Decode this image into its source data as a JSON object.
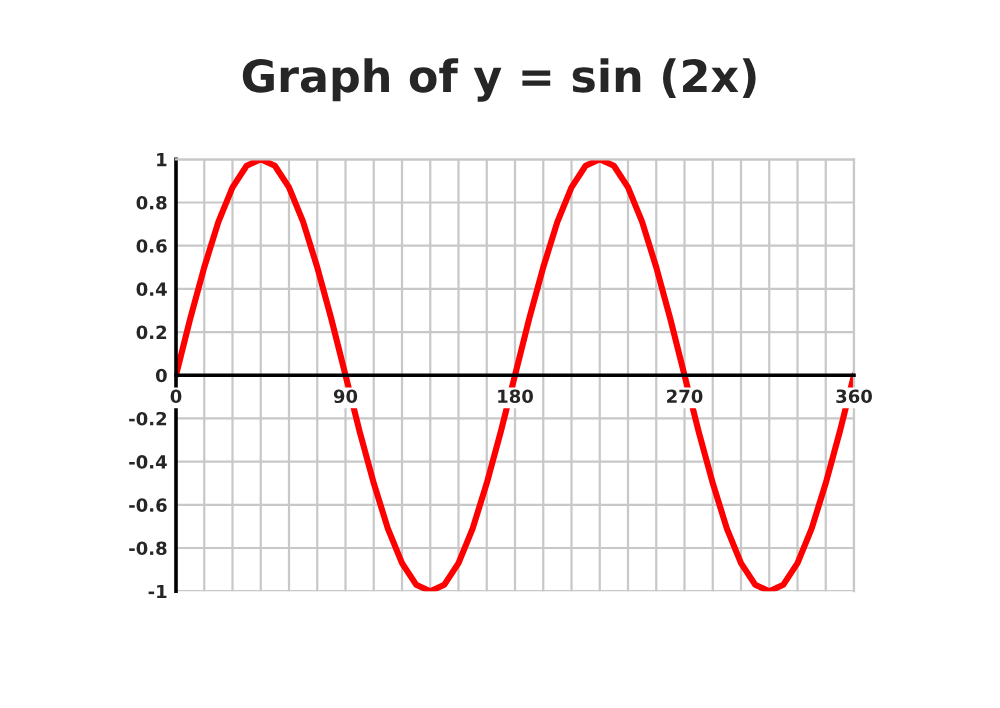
{
  "chart_data": {
    "type": "line",
    "title": "Graph of y = sin (2x)",
    "x": [
      0,
      7.5,
      15,
      22.5,
      30,
      37.5,
      45,
      52.5,
      60,
      67.5,
      75,
      82.5,
      90,
      97.5,
      105,
      112.5,
      120,
      127.5,
      135,
      142.5,
      150,
      157.5,
      165,
      172.5,
      180,
      187.5,
      195,
      202.5,
      210,
      217.5,
      225,
      232.5,
      240,
      247.5,
      255,
      262.5,
      270,
      277.5,
      285,
      292.5,
      300,
      307.5,
      315,
      322.5,
      330,
      337.5,
      345,
      352.5,
      360
    ],
    "series": [
      {
        "color": "#ff0000",
        "values": [
          0,
          0.26,
          0.5,
          0.71,
          0.87,
          0.97,
          1,
          0.97,
          0.87,
          0.71,
          0.5,
          0.26,
          0,
          -0.26,
          -0.5,
          -0.71,
          -0.87,
          -0.97,
          -1,
          -0.97,
          -0.87,
          -0.71,
          -0.5,
          -0.26,
          0,
          0.26,
          0.5,
          0.71,
          0.87,
          0.97,
          1,
          0.97,
          0.87,
          0.71,
          0.5,
          0.26,
          0,
          -0.26,
          -0.5,
          -0.71,
          -0.87,
          -0.97,
          -1,
          -0.97,
          -0.87,
          -0.71,
          -0.5,
          -0.26,
          0
        ]
      }
    ],
    "xlim": [
      0,
      360
    ],
    "xticks": [
      0,
      {
        "value": 15,
        "label": null
      },
      {
        "value": 30,
        "label": null
      },
      {
        "value": 45,
        "label": null
      },
      {
        "value": 60,
        "label": null
      },
      {
        "value": 75,
        "label": null
      },
      90,
      {
        "value": 105,
        "label": null
      },
      {
        "value": 120,
        "label": null
      },
      {
        "value": 135,
        "label": null
      },
      {
        "value": 150,
        "label": null
      },
      {
        "value": 165,
        "label": null
      },
      180,
      {
        "value": 195,
        "label": null
      },
      {
        "value": 210,
        "label": null
      },
      {
        "value": 225,
        "label": null
      },
      {
        "value": 240,
        "label": null
      },
      {
        "value": 255,
        "label": null
      },
      270,
      {
        "value": 285,
        "label": null
      },
      {
        "value": 300,
        "label": null
      },
      {
        "value": 315,
        "label": null
      },
      {
        "value": 330,
        "label": null
      },
      {
        "value": 345,
        "label": null
      },
      360
    ],
    "ylim": [
      -1,
      1
    ],
    "yticks": [
      -1,
      -0.8,
      -0.6,
      -0.4,
      -0.2,
      0,
      0.2,
      0.4,
      0.6,
      0.8,
      1
    ],
    "grid": true,
    "legend": false,
    "marker": "none",
    "line_style": "solid"
  }
}
